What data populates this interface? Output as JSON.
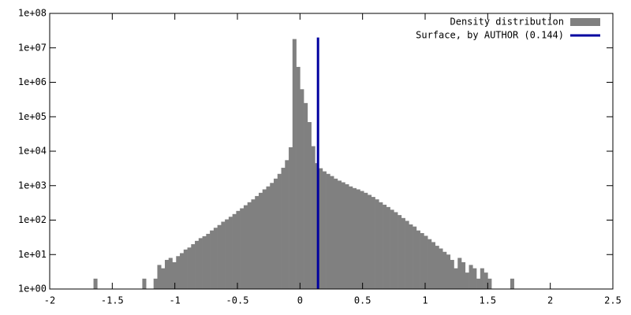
{
  "chart_data": {
    "type": "histogram",
    "log_y": true,
    "xlim": [
      -2,
      2.5
    ],
    "ylim": [
      1,
      100000000
    ],
    "xticks": [
      -2,
      -1.5,
      -1,
      -0.5,
      0,
      0.5,
      1,
      1.5,
      2,
      2.5
    ],
    "yticks": [
      {
        "value": 1,
        "label": "1e+00"
      },
      {
        "value": 10,
        "label": "1e+01"
      },
      {
        "value": 100,
        "label": "1e+02"
      },
      {
        "value": 1000,
        "label": "1e+03"
      },
      {
        "value": 10000,
        "label": "1e+04"
      },
      {
        "value": 100000,
        "label": "1e+05"
      },
      {
        "value": 1000000,
        "label": "1e+06"
      },
      {
        "value": 10000000,
        "label": "1e+07"
      },
      {
        "value": 100000000,
        "label": "1e+08"
      }
    ],
    "legend": "top-right",
    "series": [
      {
        "name": "Density distribution",
        "color": "#808080",
        "bins": [
          -1.65,
          -1.62,
          -1.59,
          -1.56,
          -1.53,
          -1.5,
          -1.47,
          -1.44,
          -1.41,
          -1.38,
          -1.35,
          -1.32,
          -1.29,
          -1.26,
          -1.23,
          -1.2,
          -1.17,
          -1.14,
          -1.11,
          -1.08,
          -1.05,
          -1.02,
          -0.99,
          -0.96,
          -0.93,
          -0.9,
          -0.87,
          -0.84,
          -0.81,
          -0.78,
          -0.75,
          -0.72,
          -0.69,
          -0.66,
          -0.63,
          -0.6,
          -0.57,
          -0.54,
          -0.51,
          -0.48,
          -0.45,
          -0.42,
          -0.39,
          -0.36,
          -0.33,
          -0.3,
          -0.27,
          -0.24,
          -0.21,
          -0.18,
          -0.15,
          -0.12,
          -0.09,
          -0.06,
          -0.03,
          0,
          0.03,
          0.06,
          0.09,
          0.12,
          0.15,
          0.18,
          0.21,
          0.24,
          0.27,
          0.3,
          0.33,
          0.36,
          0.39,
          0.42,
          0.45,
          0.48,
          0.51,
          0.54,
          0.57,
          0.6,
          0.63,
          0.66,
          0.69,
          0.72,
          0.75,
          0.78,
          0.81,
          0.84,
          0.87,
          0.9,
          0.93,
          0.96,
          0.99,
          1.02,
          1.05,
          1.08,
          1.11,
          1.14,
          1.17,
          1.2,
          1.23,
          1.26,
          1.29,
          1.32,
          1.35,
          1.38,
          1.41,
          1.44,
          1.47,
          1.5,
          1.53,
          1.56,
          1.59,
          1.62,
          1.65,
          1.68,
          1.71
        ],
        "values": [
          2,
          0,
          0,
          0,
          0,
          0,
          0,
          0,
          0,
          0,
          0,
          0,
          0,
          2,
          0,
          0,
          2,
          5,
          4,
          7,
          8,
          6,
          9,
          11,
          14,
          16,
          20,
          25,
          30,
          34,
          40,
          50,
          60,
          72,
          90,
          105,
          125,
          150,
          185,
          220,
          270,
          330,
          400,
          500,
          620,
          780,
          950,
          1200,
          1600,
          2200,
          3300,
          5500,
          13000,
          18000000,
          2800000,
          630000,
          250000,
          70000,
          14000,
          4500,
          3200,
          2600,
          2200,
          1900,
          1600,
          1400,
          1250,
          1100,
          950,
          850,
          780,
          700,
          620,
          540,
          470,
          400,
          330,
          280,
          240,
          200,
          170,
          140,
          115,
          95,
          75,
          65,
          50,
          42,
          35,
          28,
          23,
          18,
          15,
          12,
          10,
          7,
          4,
          8,
          6,
          3,
          5,
          4,
          2,
          4,
          3,
          2,
          0,
          0,
          0,
          0,
          0,
          2
        ]
      },
      {
        "name": "Surface, by AUTHOR (0.144)",
        "type": "vline",
        "color": "#0000a0",
        "x": 0.144,
        "y": [
          1,
          20000000
        ]
      }
    ]
  }
}
